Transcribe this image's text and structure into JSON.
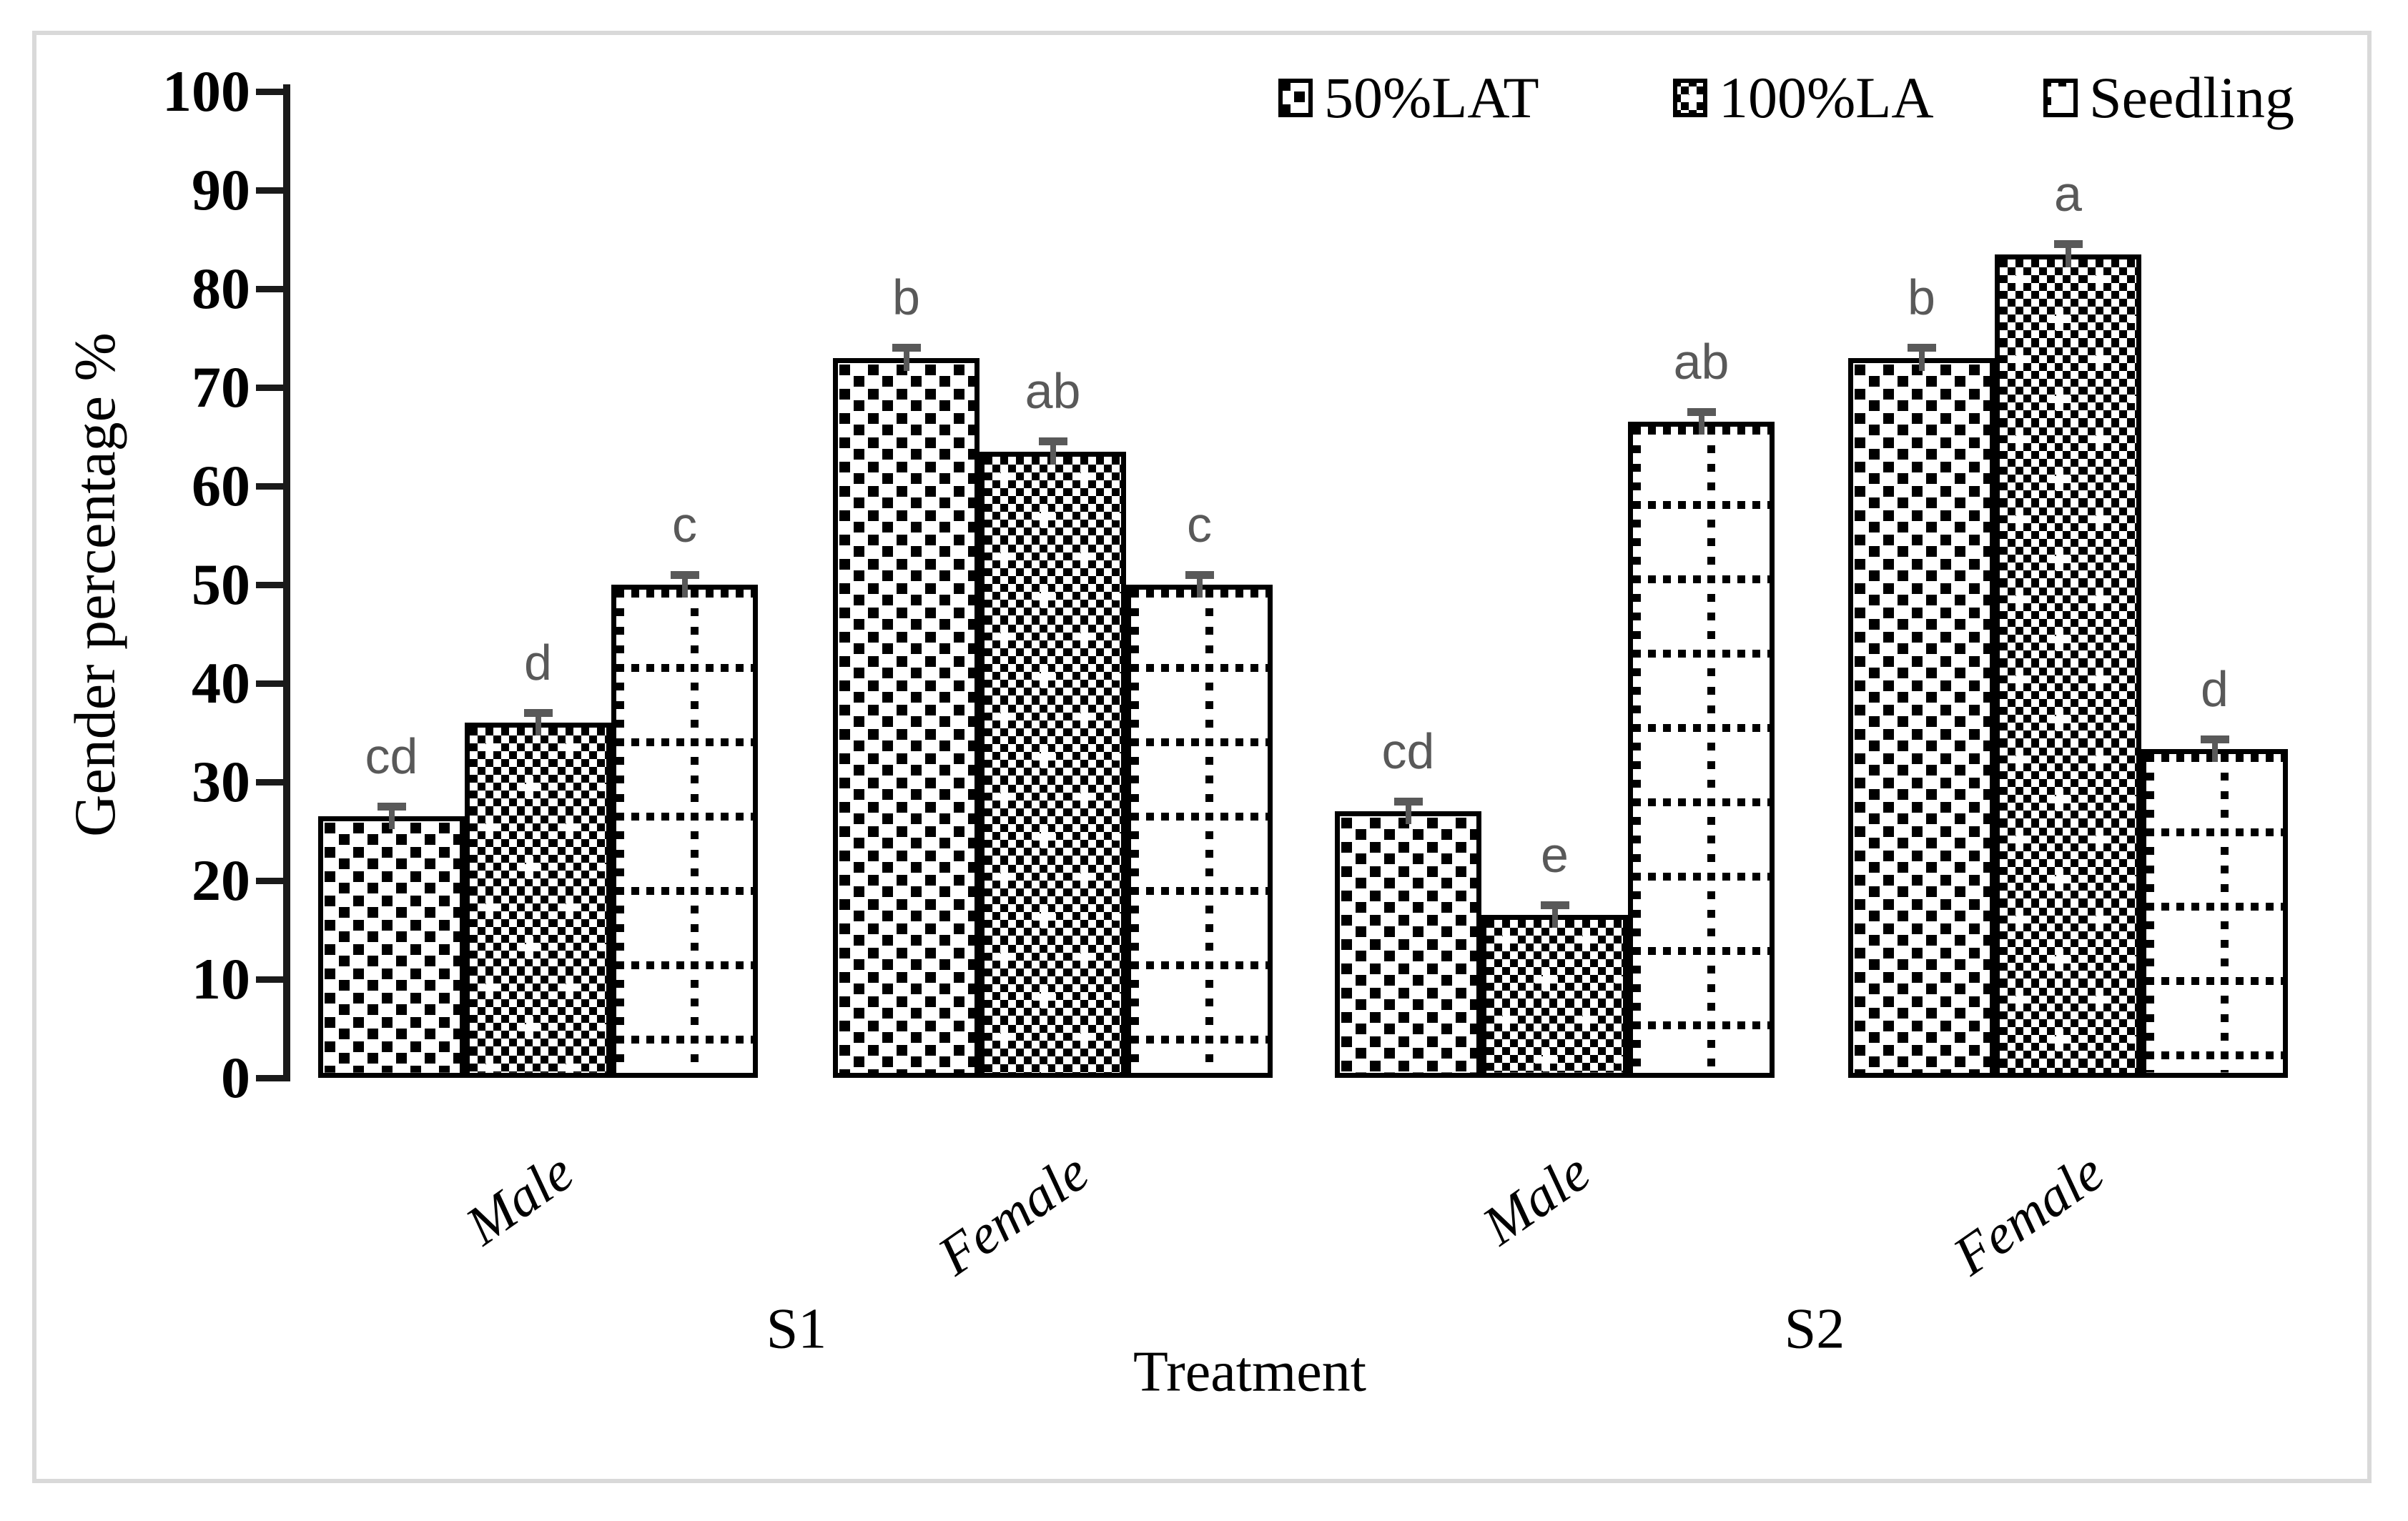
{
  "figure": {
    "background": "#ffffff",
    "frame_color": "#d9d9d9"
  },
  "colors": {
    "bar_outline": "#000000",
    "axis": "#1a1a1a",
    "error_bar": "#595959",
    "sig_letter": "#595959",
    "text": "#000000"
  },
  "legend": {
    "position": "top-right",
    "items": [
      {
        "label": "50%LAT",
        "pattern": "speckled-squares"
      },
      {
        "label": "100%LA",
        "pattern": "dense-checker"
      },
      {
        "label": "Seedling",
        "pattern": "dotted-grid"
      }
    ]
  },
  "axes": {
    "ylabel": "Gender percentage %",
    "xlabel": "Treatment"
  },
  "chart_data": {
    "type": "bar",
    "title": "",
    "xlabel": "Treatment",
    "ylabel": "Gender percentage %",
    "ylim": [
      0,
      100
    ],
    "yticks": [
      0,
      10,
      20,
      30,
      40,
      50,
      60,
      70,
      80,
      90,
      100
    ],
    "grid": false,
    "legend_position": "top-right",
    "group_labels": [
      "Male",
      "Female",
      "Male",
      "Female"
    ],
    "treatment_labels": [
      "S1",
      "S2"
    ],
    "series": [
      {
        "name": "50%LAT",
        "pattern": "speckled-squares",
        "values": [
          26.5,
          73,
          27,
          73
        ],
        "errors": [
          1,
          1,
          1,
          1
        ],
        "sig_labels": [
          "cd",
          "b",
          "cd",
          "b"
        ]
      },
      {
        "name": "100%LA",
        "pattern": "dense-checker",
        "values": [
          36,
          63.5,
          16.5,
          83.5
        ],
        "errors": [
          1,
          1,
          1,
          1
        ],
        "sig_labels": [
          "d",
          "ab",
          "e",
          "a"
        ]
      },
      {
        "name": "Seedling",
        "pattern": "dotted-grid",
        "values": [
          50,
          50,
          66.5,
          33.3
        ],
        "errors": [
          1,
          1,
          1,
          1
        ],
        "sig_labels": [
          "c",
          "c",
          "ab",
          "d"
        ]
      }
    ]
  }
}
